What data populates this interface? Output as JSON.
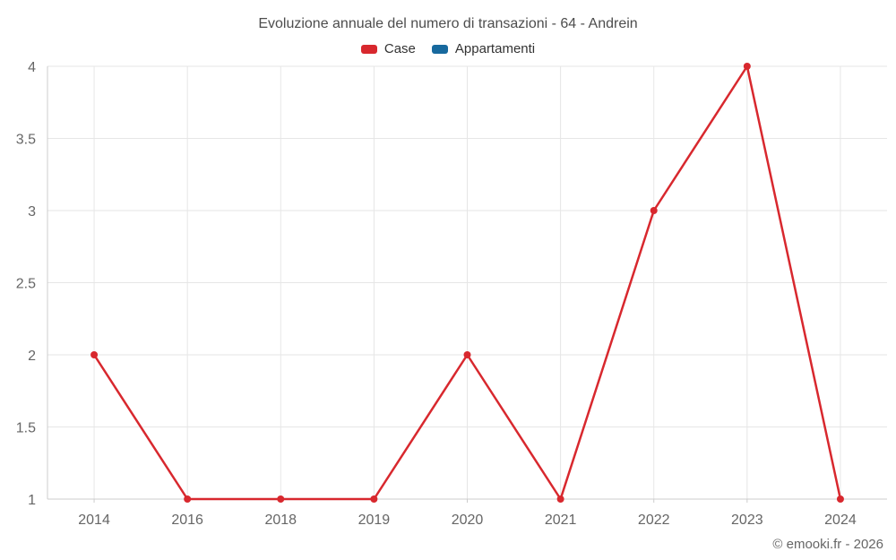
{
  "title": "Evoluzione annuale del numero di transazioni - 64 - Andrein",
  "legend": {
    "items": [
      {
        "label": "Case",
        "color": "#d8282e"
      },
      {
        "label": "Appartamenti",
        "color": "#17699e"
      }
    ]
  },
  "attribution": "© emooki.fr - 2026",
  "chart_data": {
    "type": "line",
    "title": "Evoluzione annuale del numero di transazioni - 64 - Andrein",
    "categories": [
      "2014",
      "2016",
      "2018",
      "2019",
      "2020",
      "2021",
      "2022",
      "2023",
      "2024"
    ],
    "series": [
      {
        "name": "Case",
        "color": "#d8282e",
        "values": [
          2,
          1,
          1,
          1,
          2,
          1,
          3,
          4,
          1
        ]
      },
      {
        "name": "Appartamenti",
        "color": "#17699e",
        "values": []
      }
    ],
    "xlabel": "",
    "ylabel": "",
    "ylim": [
      1,
      4
    ],
    "yticks": [
      1,
      1.5,
      2,
      2.5,
      3,
      3.5,
      4
    ],
    "grid": true,
    "legend_position": "top",
    "colors": {
      "grid_line": "#e6e6e6",
      "axis_line": "#cccccc",
      "axis_label": "#666666",
      "title_text": "#4d4d4d",
      "legend_text": "#333333",
      "background": "#ffffff"
    }
  }
}
